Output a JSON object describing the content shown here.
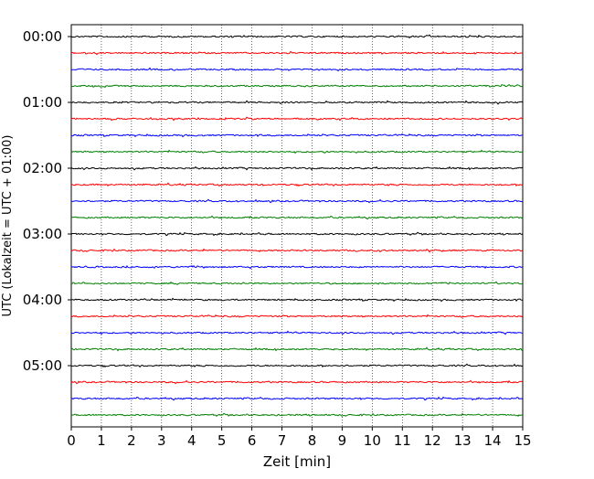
{
  "chart_data": {
    "type": "line",
    "title": "",
    "xlabel": "Zeit  [min]",
    "ylabel": "UTC (Lokalzeit = UTC + 01:00)",
    "xlim": [
      0,
      15
    ],
    "x_ticks": [
      0,
      1,
      2,
      3,
      4,
      5,
      6,
      7,
      8,
      9,
      10,
      11,
      12,
      13,
      14,
      15
    ],
    "y_tick_labels": [
      "00:00",
      "01:00",
      "02:00",
      "03:00",
      "04:00",
      "05:00"
    ],
    "grid": "vertical dotted",
    "legend": "none",
    "trace_interval_min": 15,
    "trace_start": "00:00",
    "trace_count": 24,
    "trace_colors": [
      "#000000",
      "#ff0000",
      "#0000ff",
      "#008000"
    ]
  }
}
